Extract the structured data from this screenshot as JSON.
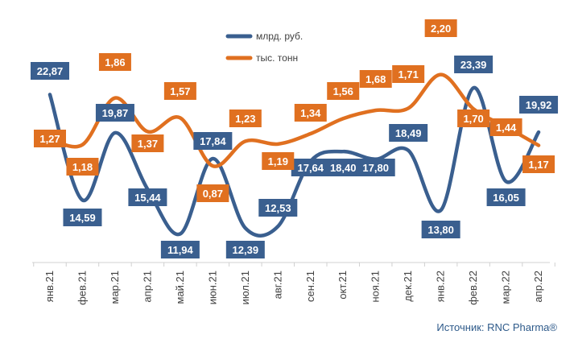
{
  "chart_data": {
    "type": "line",
    "categories": [
      "янв.21",
      "фев.21",
      "мар.21",
      "апр.21",
      "май.21",
      "июн.21",
      "июл.21",
      "авг.21",
      "сен.21",
      "окт.21",
      "ноя.21",
      "дек.21",
      "янв.22",
      "фев.22",
      "мар.22",
      "апр.22"
    ],
    "series": [
      {
        "name": "млрд. руб.",
        "color": "#3a5f8f",
        "labels": [
          "22,87",
          "14,59",
          "19,87",
          "15,44",
          "11,94",
          "17,84",
          "12,39",
          "12,53",
          "17,64",
          "18,40",
          "17,80",
          "18,49",
          "13,80",
          "23,39",
          "16,05",
          "19,92"
        ],
        "values": [
          22.87,
          14.59,
          19.87,
          15.44,
          11.94,
          17.84,
          12.39,
          12.53,
          17.64,
          18.4,
          17.8,
          18.49,
          13.8,
          23.39,
          16.05,
          19.92
        ]
      },
      {
        "name": "тыс. тонн",
        "color": "#e07020",
        "labels": [
          "1,27",
          "1,18",
          "1,86",
          "1,37",
          "1,57",
          "0,87",
          "1,23",
          "1,19",
          "1,34",
          "1,56",
          "1,68",
          "1,71",
          "2,20",
          "1,70",
          "1,44",
          "1,17"
        ],
        "values": [
          1.27,
          1.18,
          1.86,
          1.37,
          1.57,
          0.87,
          1.23,
          1.19,
          1.34,
          1.56,
          1.68,
          1.71,
          2.2,
          1.7,
          1.44,
          1.17
        ]
      }
    ],
    "legend_position": "top-center"
  },
  "source": "Источник: RNC Pharma®"
}
